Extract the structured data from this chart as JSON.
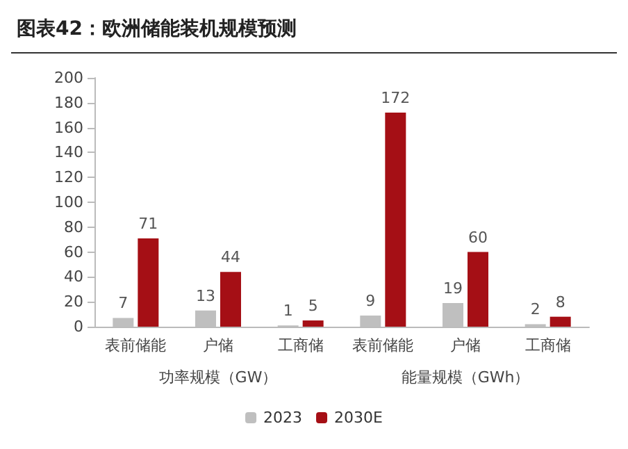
{
  "chart_data": {
    "type": "bar",
    "title": "图表42：欧洲储能装机规模预测",
    "categories": [
      "表前储能",
      "户储",
      "工商储",
      "表前储能",
      "户储",
      "工商储"
    ],
    "series": [
      {
        "name": "2023",
        "color": "#bfbfbf",
        "values": [
          7,
          13,
          1,
          9,
          19,
          2
        ]
      },
      {
        "name": "2030E",
        "color": "#a50f15",
        "values": [
          71,
          44,
          5,
          172,
          60,
          8
        ]
      }
    ],
    "annotations": [
      "功率规模（GW）",
      "能量规模（GWh）"
    ],
    "ylim": [
      0,
      200
    ],
    "yticks": [
      0,
      20,
      40,
      60,
      80,
      100,
      120,
      140,
      160,
      180,
      200
    ],
    "grid": false,
    "legend": "bottom",
    "data_labels": true
  }
}
